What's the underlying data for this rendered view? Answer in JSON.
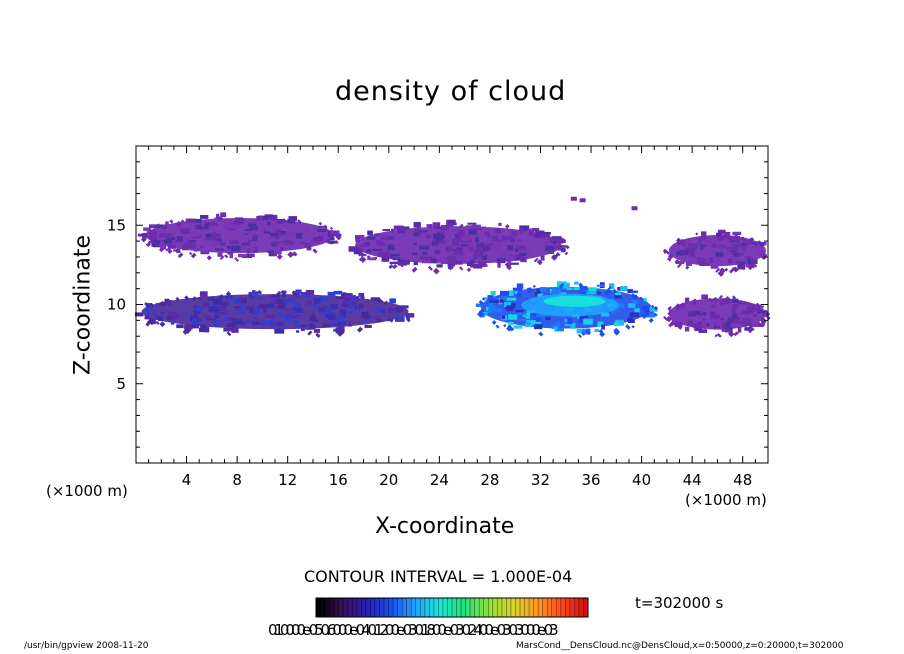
{
  "chart_data": {
    "type": "heatmap",
    "title": "density of cloud",
    "xlabel": "X-coordinate",
    "ylabel": "Z-coordinate",
    "x_unit": "(×1000 m)",
    "z_unit": "(×1000 m)",
    "xlim": [
      0,
      50
    ],
    "ylim": [
      0,
      20
    ],
    "x_ticks": [
      4,
      8,
      12,
      16,
      20,
      24,
      28,
      32,
      36,
      40,
      44,
      48
    ],
    "y_ticks": [
      5,
      10,
      15
    ],
    "contour_interval": "CONTOUR INTERVAL = 1.000E-04",
    "time_label": "t=302000 s",
    "colorbar_labels": "0.10000e-05 0.6000e-04 0.1200e-03 0.1800e-03 0.2400e-03 0.3000e-03",
    "colorbar_colors": [
      "#000000",
      "#3a0f5a",
      "#2b1db8",
      "#1a4ef0",
      "#1fa7ff",
      "#19e6d8",
      "#22e27a",
      "#8ee23a",
      "#d8d32a",
      "#ff9b1f",
      "#ff4a1a",
      "#d01010"
    ],
    "cloud_regions": [
      {
        "name": "upper-left layer",
        "x": [
          0.5,
          16
        ],
        "z": [
          13.0,
          15.7
        ],
        "density": "low"
      },
      {
        "name": "upper-middle layer",
        "x": [
          17,
          34
        ],
        "z": [
          12.3,
          15.2
        ],
        "density": "low"
      },
      {
        "name": "upper-right layer",
        "x": [
          42,
          50
        ],
        "z": [
          12.2,
          14.6
        ],
        "density": "low"
      },
      {
        "name": "lower-left layer",
        "x": [
          0,
          22
        ],
        "z": [
          8.2,
          10.9
        ],
        "density": "low-moderate"
      },
      {
        "name": "lower-middle core",
        "x": [
          27,
          41
        ],
        "z": [
          8.2,
          11.4
        ],
        "density": "high"
      },
      {
        "name": "lower-right layer",
        "x": [
          42,
          50
        ],
        "z": [
          8.2,
          10.6
        ],
        "density": "low"
      }
    ],
    "footer_left": "/usr/bin/gpview   2008-11-20",
    "footer_right": "MarsCond__DensCloud.nc@DensCloud,x=0:50000,z=0:20000,t=302000"
  }
}
